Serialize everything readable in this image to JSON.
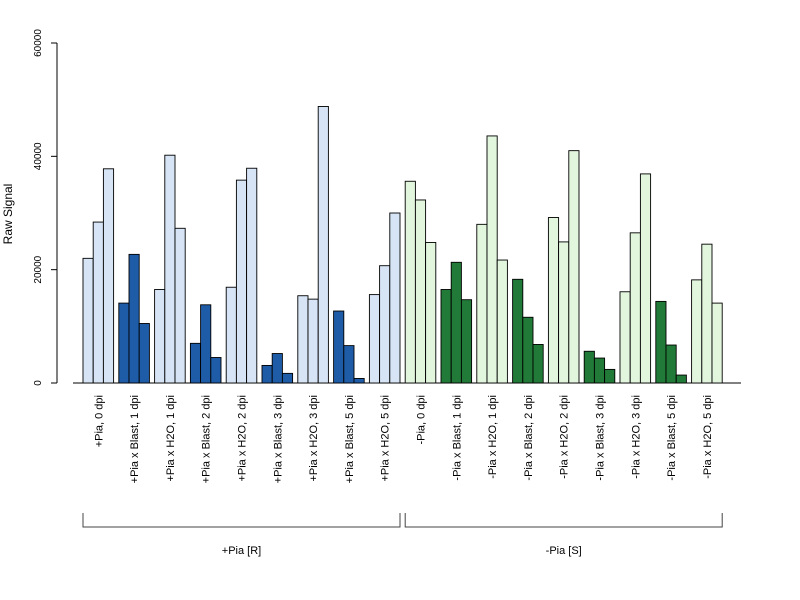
{
  "chart_data": {
    "type": "bar",
    "ylabel": "Raw Signal",
    "xlabel": "",
    "ylim": [
      0,
      60000
    ],
    "yticks": [
      0,
      20000,
      40000,
      60000
    ],
    "grid": false,
    "legend": "none",
    "categories": [
      "+Pia, 0 dpi",
      "+Pia x Blast, 1 dpi",
      "+Pia x H2O, 1 dpi",
      "+Pia x Blast, 2 dpi",
      "+Pia x H2O, 2 dpi",
      "+Pia x Blast, 3 dpi",
      "+Pia x H2O, 3 dpi",
      "+Pia x Blast, 5 dpi",
      "+Pia x H2O, 5 dpi",
      "-Pia, 0 dpi",
      "-Pia x Blast, 1 dpi",
      "-Pia x H2O, 1 dpi",
      "-Pia x Blast, 2 dpi",
      "-Pia x H2O, 2 dpi",
      "-Pia x Blast, 3 dpi",
      "-Pia x H2O, 3 dpi",
      "-Pia x Blast, 5 dpi",
      "-Pia x H2O, 5 dpi"
    ],
    "values": [
      [
        22000,
        28400,
        37800
      ],
      [
        14100,
        22700,
        10500
      ],
      [
        16500,
        40200,
        27300
      ],
      [
        7000,
        13800,
        4500
      ],
      [
        16900,
        35800,
        37900
      ],
      [
        3100,
        5200,
        1700
      ],
      [
        15400,
        14800,
        48800
      ],
      [
        12700,
        6600,
        800
      ],
      [
        15600,
        20700,
        30000
      ],
      [
        35600,
        32300,
        24800
      ],
      [
        16500,
        21300,
        14700
      ],
      [
        28000,
        43600,
        21700
      ],
      [
        18300,
        11600,
        6800
      ],
      [
        29200,
        24900,
        41000
      ],
      [
        5600,
        4400,
        2400
      ],
      [
        16100,
        26500,
        36900
      ],
      [
        14400,
        6700,
        1400
      ],
      [
        18200,
        24500,
        14100
      ]
    ],
    "bar_colors": [
      "#d6e4f5",
      "#1f5ca8",
      "#d6e4f5",
      "#1f5ca8",
      "#d6e4f5",
      "#1f5ca8",
      "#d6e4f5",
      "#1f5ca8",
      "#d6e4f5",
      "#e2f5dd",
      "#217a37",
      "#e2f5dd",
      "#217a37",
      "#e2f5dd",
      "#217a37",
      "#e2f5dd",
      "#217a37",
      "#e2f5dd"
    ],
    "groups": [
      {
        "label": "+Pia [R]",
        "first": 0,
        "last": 8
      },
      {
        "label": "-Pia [S]",
        "first": 9,
        "last": 17
      }
    ]
  }
}
